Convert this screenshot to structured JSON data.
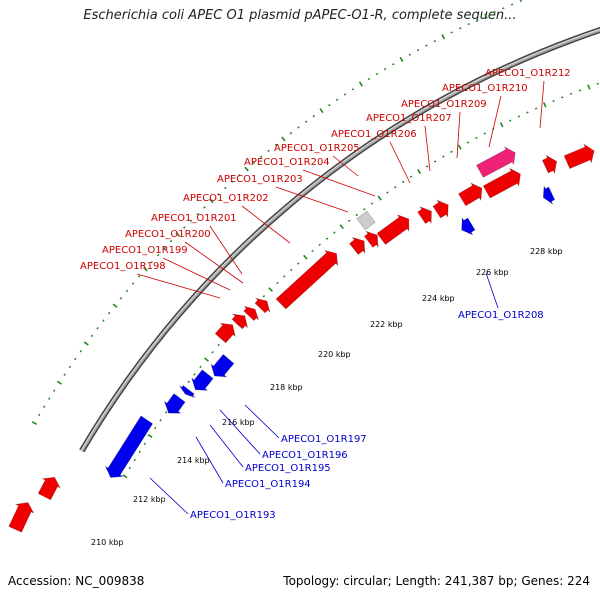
{
  "title": "Escherichia coli APEC O1 plasmid pAPEC-O1-R, complete sequen...",
  "footer": {
    "accession": "Accession: NC_009838",
    "summary": "Topology: circular; Length: 241,387 bp; Genes: 224"
  },
  "colors": {
    "forward_gene": "#ee0000",
    "reverse_gene": "#0000ee",
    "highlight_gene": "#ee2277",
    "unknown_gene": "#cccccc",
    "backbone": "#888888",
    "ruler_dots": "#228822",
    "forward_label": "#cc0000",
    "reverse_label": "#0000cc"
  },
  "scale_labels": [
    "210 kbp",
    "212 kbp",
    "214 kbp",
    "216 kbp",
    "218 kbp",
    "220 kbp",
    "222 kbp",
    "224 kbp",
    "226 kbp",
    "228 kbp"
  ],
  "forward_gene_labels": [
    "APECO1_O1R198",
    "APECO1_O1R199",
    "APECO1_O1R200",
    "APECO1_O1R201",
    "APECO1_O1R202",
    "APECO1_O1R203",
    "APECO1_O1R204",
    "APECO1_O1R205",
    "APECO1_O1R206",
    "APECO1_O1R207",
    "APECO1_O1R209",
    "APECO1_O1R210",
    "APECO1_O1R212"
  ],
  "reverse_gene_labels": [
    "APECO1_O1R193",
    "APECO1_O1R194",
    "APECO1_O1R195",
    "APECO1_O1R196",
    "APECO1_O1R197",
    "APECO1_O1R208"
  ]
}
